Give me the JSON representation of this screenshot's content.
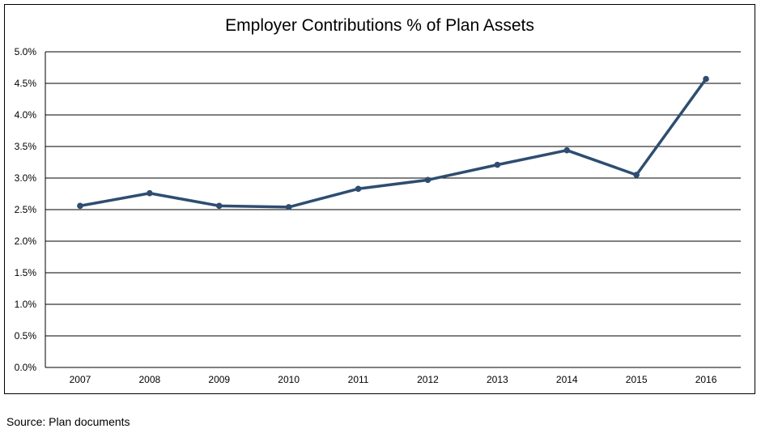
{
  "chart_data": {
    "type": "line",
    "title": "Employer Contributions % of Plan Assets",
    "xlabel": "",
    "ylabel": "",
    "categories": [
      "2007",
      "2008",
      "2009",
      "2010",
      "2011",
      "2012",
      "2013",
      "2014",
      "2015",
      "2016"
    ],
    "series": [
      {
        "values": [
          2.56,
          2.76,
          2.56,
          2.54,
          2.83,
          2.97,
          3.21,
          3.44,
          3.05,
          4.57
        ]
      }
    ],
    "ylim": [
      0,
      5.0
    ],
    "yticks": [
      "0.0%",
      "0.5%",
      "1.0%",
      "1.5%",
      "2.0%",
      "2.5%",
      "3.0%",
      "3.5%",
      "4.0%",
      "4.5%",
      "5.0%"
    ],
    "grid": true,
    "legend": "none",
    "colors": {
      "line": "#2e4d70",
      "grid": "#000000"
    }
  },
  "source_note": "Source:  Plan documents"
}
